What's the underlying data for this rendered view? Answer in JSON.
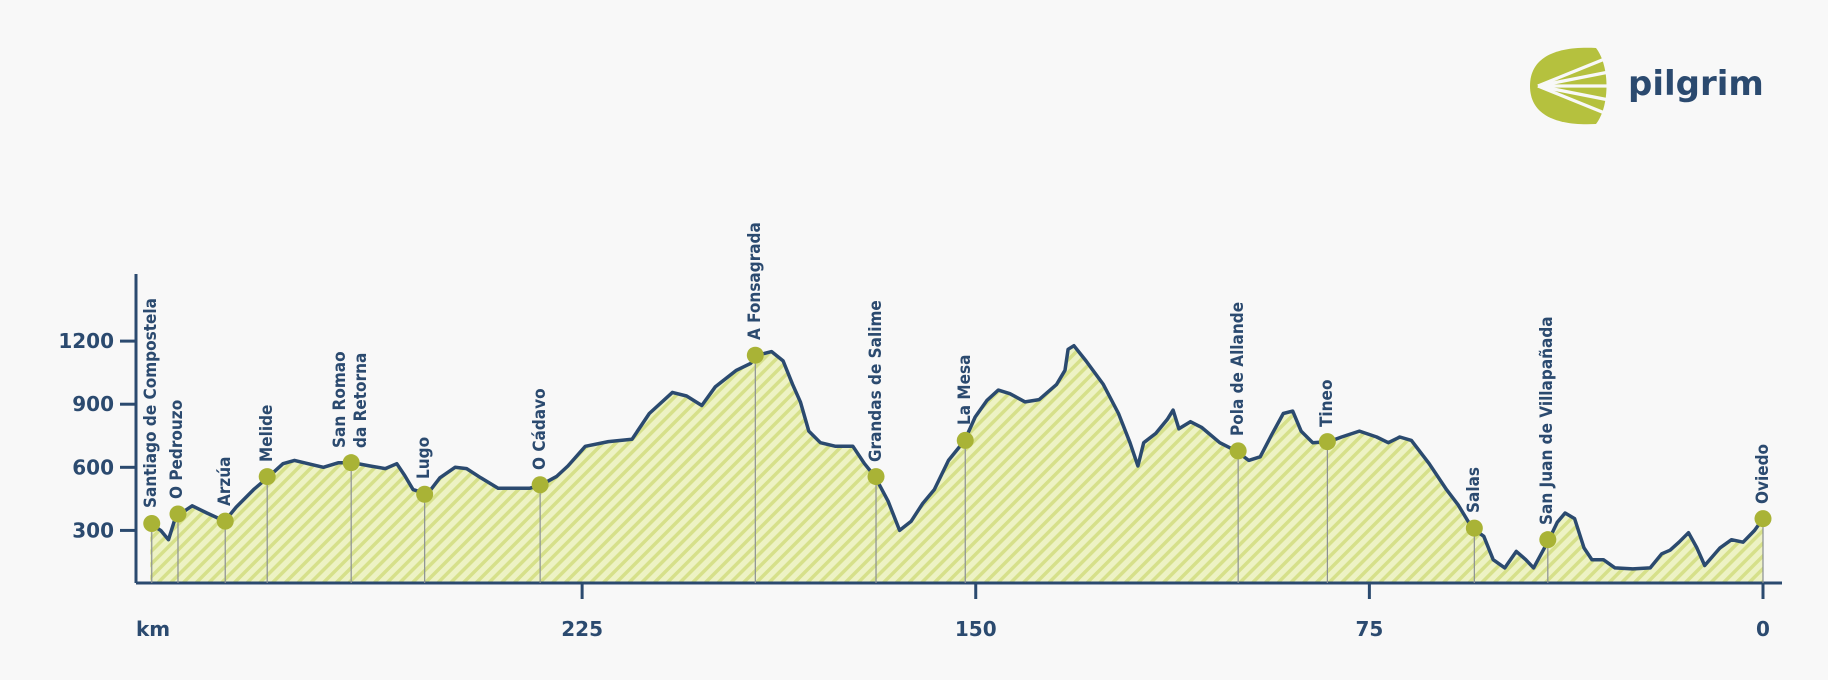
{
  "logo": {
    "text": "pilgrim"
  },
  "chart_data": {
    "type": "area",
    "x_label": "km",
    "xlim": [
      310,
      0
    ],
    "ylim": [
      50,
      1500
    ],
    "xticks": [
      225,
      150,
      75,
      0
    ],
    "yticks": [
      300,
      600,
      900,
      1200
    ],
    "line_color": "#2b4a6f",
    "fill_color": "#edf2c4",
    "hatch_color": "#d6e08a",
    "marker_color": "#a9b336",
    "x": [
      307.3,
      305.3,
      303.8,
      302.7,
      301.6,
      299.3,
      296.5,
      293.1,
      290.9,
      287.6,
      284.7,
      282.0,
      279.8,
      277.2,
      274.3,
      271.4,
      268.7,
      265.4,
      262.5,
      260.3,
      258.8,
      257.2,
      254.5,
      252.1,
      249.2,
      247.0,
      244.3,
      241.0,
      237.7,
      235.0,
      232.8,
      229.9,
      227.7,
      224.4,
      220.0,
      215.5,
      212.2,
      207.8,
      205.1,
      202.2,
      199.6,
      195.6,
      192.9,
      191.6,
      188.9,
      186.7,
      184.9,
      183.4,
      181.8,
      179.6,
      176.7,
      173.4,
      171.2,
      169.2,
      166.7,
      164.5,
      162.3,
      160.1,
      157.9,
      155.2,
      152.1,
      150.1,
      147.9,
      145.7,
      143.5,
      140.6,
      137.9,
      134.6,
      133.0,
      132.4,
      131.3,
      129.0,
      125.7,
      122.8,
      120.6,
      119.1,
      118.0,
      115.7,
      113.5,
      112.4,
      111.3,
      109.1,
      106.9,
      103.5,
      100.4,
      98.0,
      95.8,
      93.6,
      91.4,
      89.6,
      88.0,
      85.8,
      82.7,
      80.3,
      76.9,
      73.6,
      71.4,
      69.2,
      67.0,
      63.6,
      60.3,
      58.1,
      55.4,
      53.2,
      51.4,
      49.2,
      47.0,
      45.2,
      43.7,
      40.8,
      39.2,
      37.7,
      35.9,
      34.1,
      32.6,
      30.4,
      28.2,
      24.8,
      21.5,
      19.3,
      17.7,
      16.0,
      14.2,
      12.6,
      11.1,
      8.2,
      6.0,
      3.8,
      1.6,
      0
    ],
    "values": [
      333,
      300,
      256,
      344,
      378,
      417,
      383,
      344,
      411,
      494,
      556,
      617,
      633,
      617,
      600,
      622,
      622,
      606,
      594,
      617,
      561,
      494,
      472,
      550,
      600,
      594,
      550,
      500,
      500,
      500,
      517,
      556,
      606,
      700,
      722,
      733,
      856,
      956,
      939,
      894,
      983,
      1061,
      1094,
      1133,
      1150,
      1106,
      994,
      911,
      772,
      717,
      700,
      700,
      617,
      556,
      439,
      300,
      344,
      428,
      494,
      633,
      728,
      839,
      917,
      967,
      950,
      911,
      922,
      994,
      1061,
      1161,
      1178,
      1106,
      994,
      856,
      717,
      606,
      717,
      761,
      828,
      872,
      783,
      817,
      789,
      717,
      678,
      633,
      650,
      756,
      856,
      867,
      772,
      717,
      722,
      744,
      772,
      744,
      717,
      744,
      728,
      617,
      494,
      422,
      311,
      272,
      161,
      122,
      200,
      161,
      122,
      256,
      339,
      383,
      356,
      217,
      161,
      161,
      122,
      117,
      122,
      189,
      206,
      244,
      289,
      217,
      133,
      217,
      256,
      244,
      300,
      356
    ],
    "waypoints": {
      "names": [
        "Santiago de Compostela",
        "O Pedrouzo",
        "Arzúa",
        "Melide",
        "San Romao\nda Retorna",
        "Lugo",
        "O Cádavo",
        "A Fonsagrada",
        "Grandas de Salime",
        "La Mesa",
        "Pola de Allande",
        "Tineo",
        "Salas",
        "San Juan de Villapañada",
        "Oviedo"
      ],
      "x": [
        307,
        302,
        293,
        285,
        269,
        255,
        233,
        192,
        169,
        152,
        100,
        83,
        55,
        41,
        0
      ],
      "values": [
        333,
        378,
        344,
        556,
        622,
        472,
        517,
        1133,
        556,
        728,
        678,
        722,
        311,
        256,
        356
      ]
    }
  }
}
